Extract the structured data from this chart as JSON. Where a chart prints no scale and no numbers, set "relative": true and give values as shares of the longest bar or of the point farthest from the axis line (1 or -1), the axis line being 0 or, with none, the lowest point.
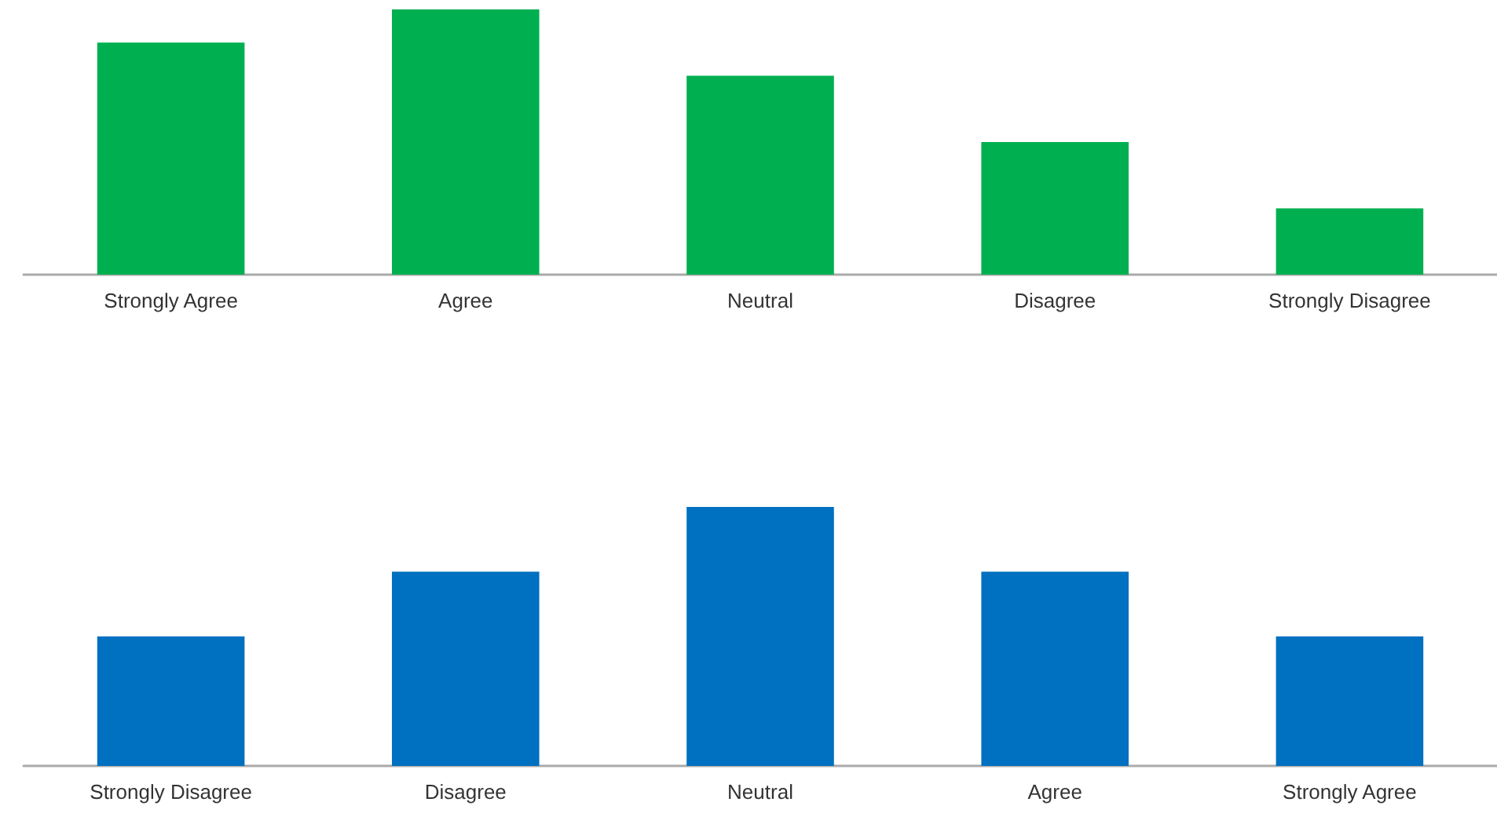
{
  "chart_data": [
    {
      "type": "bar",
      "relative": true,
      "categories": [
        "Strongly Agree",
        "Agree",
        "Neutral",
        "Disagree",
        "Strongly Disagree"
      ],
      "color": "#00b050",
      "values": [
        0.875,
        1,
        0.75,
        0.5,
        0.25
      ]
    },
    {
      "type": "bar",
      "relative": true,
      "categories": [
        "Strongly Disagree",
        "Disagree",
        "Neutral",
        "Agree",
        "Strongly Agree"
      ],
      "color": "#0070c0",
      "values": [
        0.5,
        0.75,
        1,
        0.75,
        0.5
      ]
    }
  ]
}
